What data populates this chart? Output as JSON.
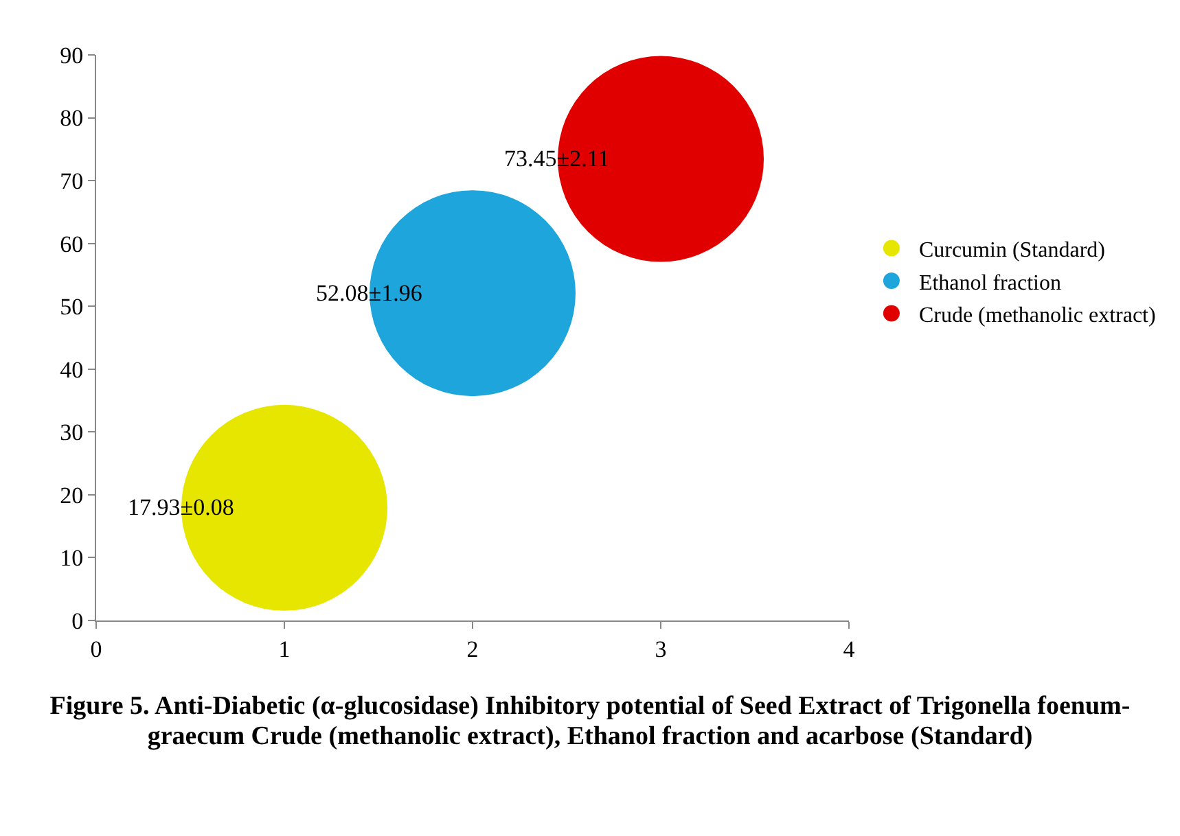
{
  "chart_data": {
    "type": "bubble",
    "title": "Figure 5. Anti-Diabetic (α-glucosidase) Inhibitory potential of Seed Extract of Trigonella foenum-graecum Crude (methanolic extract), Ethanol fraction and acarbose (Standard)",
    "series": [
      {
        "name": "Curcumin (Standard)",
        "color": "#e6e600",
        "x": [
          1
        ],
        "values": [
          17.93
        ],
        "sizes": [
          1
        ],
        "value_labels": [
          "17.93±0.08"
        ]
      },
      {
        "name": "Ethanol fraction",
        "color": "#1ea6dc",
        "x": [
          2
        ],
        "values": [
          52.08
        ],
        "sizes": [
          1
        ],
        "value_labels": [
          "52.08±1.96"
        ]
      },
      {
        "name": "Crude (methanolic extract)",
        "color": "#e00000",
        "x": [
          3
        ],
        "values": [
          73.45
        ],
        "sizes": [
          1
        ],
        "value_labels": [
          "73.45±2.11"
        ]
      }
    ],
    "xlim": [
      0,
      4
    ],
    "xticks": [
      0,
      1,
      2,
      3,
      4
    ],
    "ylim": [
      0,
      90
    ],
    "yticks": [
      0,
      10,
      20,
      30,
      40,
      50,
      60,
      70,
      80,
      90
    ],
    "grid": false,
    "legend": "right"
  }
}
